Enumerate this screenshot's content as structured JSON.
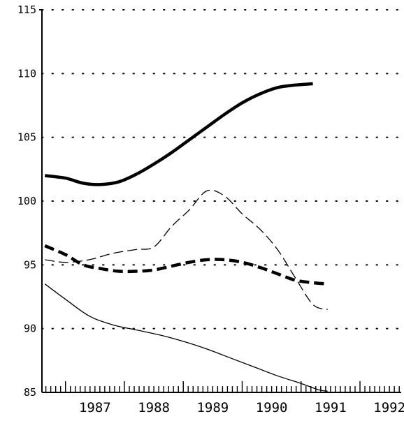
{
  "chart_data": {
    "type": "line",
    "title": "",
    "xlabel": "",
    "ylabel": "",
    "xlim": [
      1986.6,
      1992.7
    ],
    "ylim": [
      85,
      115
    ],
    "y_ticks": [
      85,
      90,
      95,
      100,
      105,
      110,
      115
    ],
    "x_tick_labels": [
      "1987",
      "1988",
      "1989",
      "1990",
      "1991",
      "1992"
    ],
    "grid": "dotted horizontal at each y tick",
    "legend": "none",
    "series": [
      {
        "style": "thick-solid",
        "color": "#000000",
        "x": [
          1986.65,
          1987.0,
          1987.3,
          1987.6,
          1987.9,
          1988.2,
          1988.5,
          1988.8,
          1989.1,
          1989.4,
          1989.7,
          1990.0,
          1990.3,
          1990.6,
          1990.9,
          1991.2
        ],
        "y": [
          102.0,
          101.8,
          101.4,
          101.3,
          101.5,
          102.1,
          102.9,
          103.8,
          104.8,
          105.8,
          106.8,
          107.7,
          108.4,
          108.9,
          109.1,
          109.2
        ]
      },
      {
        "style": "thin-dashed",
        "color": "#000000",
        "x": [
          1986.65,
          1987.0,
          1987.4,
          1987.8,
          1988.2,
          1988.5,
          1988.8,
          1989.1,
          1989.4,
          1989.7,
          1990.0,
          1990.3,
          1990.6,
          1990.9,
          1991.2,
          1991.45
        ],
        "y": [
          95.4,
          95.2,
          95.4,
          95.9,
          96.2,
          96.4,
          98.0,
          99.3,
          100.8,
          100.4,
          99.0,
          97.8,
          96.2,
          94.0,
          91.9,
          91.5
        ]
      },
      {
        "style": "thick-dashed",
        "color": "#000000",
        "x": [
          1986.65,
          1987.0,
          1987.3,
          1987.6,
          1987.9,
          1988.2,
          1988.5,
          1988.8,
          1989.1,
          1989.4,
          1989.7,
          1990.0,
          1990.3,
          1990.6,
          1990.9,
          1991.2,
          1991.45
        ],
        "y": [
          96.5,
          95.8,
          95.0,
          94.7,
          94.5,
          94.5,
          94.6,
          94.9,
          95.2,
          95.4,
          95.4,
          95.2,
          94.8,
          94.3,
          93.8,
          93.6,
          93.5
        ]
      },
      {
        "style": "thin-solid",
        "color": "#000000",
        "x": [
          1986.65,
          1987.0,
          1987.4,
          1987.8,
          1988.2,
          1988.6,
          1989.0,
          1989.4,
          1989.8,
          1990.2,
          1990.6,
          1991.0,
          1991.3,
          1991.45
        ],
        "y": [
          93.5,
          92.3,
          91.0,
          90.3,
          89.9,
          89.5,
          89.0,
          88.4,
          87.7,
          87.0,
          86.3,
          85.7,
          85.2,
          85.1
        ]
      }
    ]
  }
}
